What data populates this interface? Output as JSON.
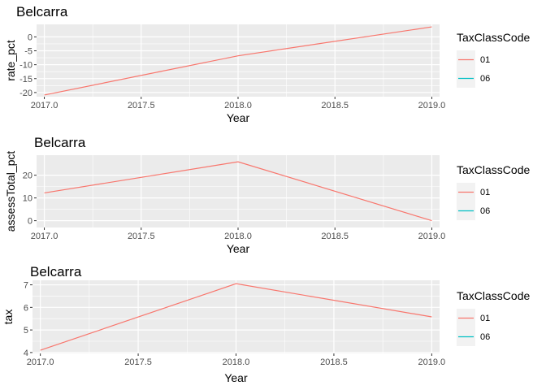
{
  "chart_data": [
    {
      "type": "line",
      "title": "Belcarra",
      "xlabel": "Year",
      "ylabel": "rate_pct",
      "legend_title": "TaxClassCode",
      "legend_position": "right",
      "grid": true,
      "xlim": [
        2016.96,
        2019.04
      ],
      "ylim": [
        -21.5,
        4.5
      ],
      "xticks": [
        2017.0,
        2017.5,
        2018.0,
        2018.5,
        2019.0
      ],
      "yticks": [
        0,
        -5,
        -10,
        -15,
        -20
      ],
      "series": [
        {
          "name": "01",
          "color": "#F8766D",
          "x": [
            2017,
            2018,
            2019
          ],
          "y": [
            -20.9,
            -6.8,
            3.6
          ]
        },
        {
          "name": "06",
          "color": "#00BFC4",
          "x": [],
          "y": []
        }
      ]
    },
    {
      "type": "line",
      "title": "Belcarra",
      "xlabel": "Year",
      "ylabel": "assessTotal_pct",
      "legend_title": "TaxClassCode",
      "legend_position": "right",
      "grid": true,
      "xlim": [
        2016.96,
        2019.04
      ],
      "ylim": [
        -3.0,
        28.8
      ],
      "xticks": [
        2017.0,
        2017.5,
        2018.0,
        2018.5,
        2019.0
      ],
      "yticks": [
        20,
        10,
        0
      ],
      "series": [
        {
          "name": "01",
          "color": "#F8766D",
          "x": [
            2017,
            2018,
            2019
          ],
          "y": [
            12.2,
            25.9,
            0.0
          ]
        },
        {
          "name": "06",
          "color": "#00BFC4",
          "x": [],
          "y": []
        }
      ]
    },
    {
      "type": "line",
      "title": "Belcarra",
      "xlabel": "Year",
      "ylabel": "tax",
      "legend_title": "TaxClassCode",
      "legend_position": "right",
      "grid": true,
      "xlim": [
        2016.96,
        2019.04
      ],
      "ylim": [
        3.96,
        7.2
      ],
      "xticks": [
        2017.0,
        2017.5,
        2018.0,
        2018.5,
        2019.0
      ],
      "yticks": [
        7,
        6,
        5,
        4
      ],
      "series": [
        {
          "name": "01",
          "color": "#F8766D",
          "x": [
            2017,
            2018,
            2019
          ],
          "y": [
            4.1,
            7.05,
            5.58
          ]
        },
        {
          "name": "06",
          "color": "#00BFC4",
          "x": [],
          "y": []
        }
      ]
    }
  ],
  "style": {
    "panel_bg": "#EBEBEB",
    "grid_major": "#FFFFFF",
    "tick_color": "#333333",
    "legend_key_bg": "#F2F2F2"
  }
}
